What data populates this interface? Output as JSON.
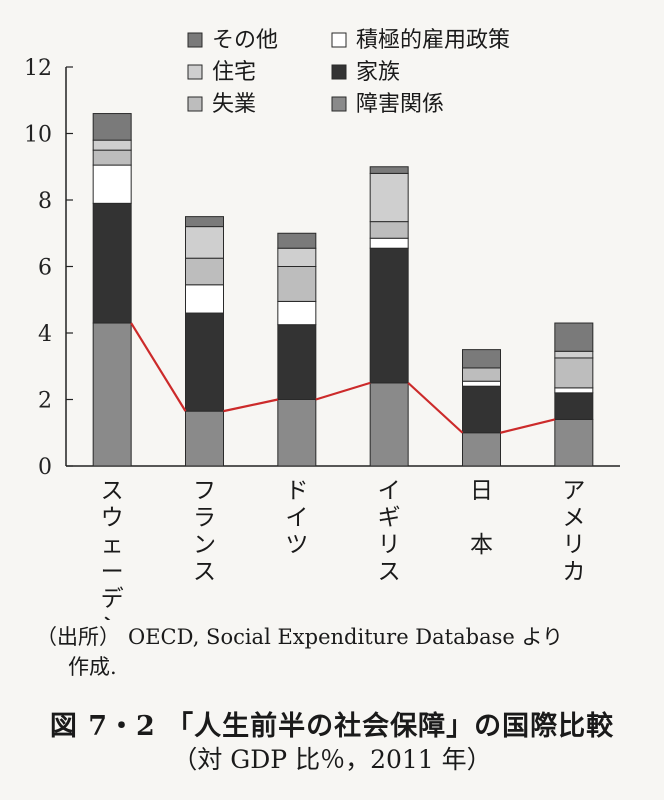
{
  "chart_data": {
    "type": "bar",
    "stacked": true,
    "categories": [
      "スウェーデン",
      "フランス",
      "ドイツ",
      "イギリス",
      "日　本",
      "アメリカ"
    ],
    "ylim": [
      0,
      12
    ],
    "yticks": [
      0,
      2,
      4,
      6,
      8,
      10,
      12
    ],
    "grid": false,
    "legend_position": "top",
    "series": [
      {
        "name": "障害関係",
        "color": "#8a8a8a",
        "values": [
          4.3,
          1.65,
          2.0,
          2.5,
          1.0,
          1.4
        ]
      },
      {
        "name": "家族",
        "color": "#333333",
        "values": [
          3.6,
          2.95,
          2.25,
          4.05,
          1.4,
          0.8
        ]
      },
      {
        "name": "積極的雇用政策",
        "color": "#ffffff",
        "values": [
          1.15,
          0.85,
          0.7,
          0.3,
          0.15,
          0.15
        ]
      },
      {
        "name": "失業",
        "color": "#bdbdbd",
        "values": [
          0.45,
          0.8,
          1.05,
          0.5,
          0.4,
          0.9
        ]
      },
      {
        "name": "住宅",
        "color": "#cfcfcf",
        "values": [
          0.3,
          0.95,
          0.55,
          1.45,
          0.0,
          0.2
        ]
      },
      {
        "name": "その他",
        "color": "#7a7a7a",
        "values": [
          0.8,
          0.3,
          0.45,
          0.2,
          0.55,
          0.85
        ]
      }
    ],
    "line_series": {
      "name": "障害関係",
      "color": "#cc2a2a",
      "values": [
        4.3,
        1.65,
        2.0,
        2.5,
        1.0,
        1.4
      ]
    },
    "legend": [
      {
        "label": "その他",
        "color": "#7a7a7a"
      },
      {
        "label": "積極的雇用政策",
        "color": "#ffffff"
      },
      {
        "label": "住宅",
        "color": "#cfcfcf"
      },
      {
        "label": "家族",
        "color": "#333333"
      },
      {
        "label": "失業",
        "color": "#bdbdbd"
      },
      {
        "label": "障害関係",
        "color": "#8a8a8a"
      }
    ]
  },
  "source": {
    "label": "（出所）",
    "text": "OECD, Social Expenditure Database より",
    "continuation": "作成."
  },
  "caption": {
    "title": "図 7・2 「人生前半の社会保障」の国際比較",
    "subtitle": "（対 GDP 比％，2011 年）"
  }
}
